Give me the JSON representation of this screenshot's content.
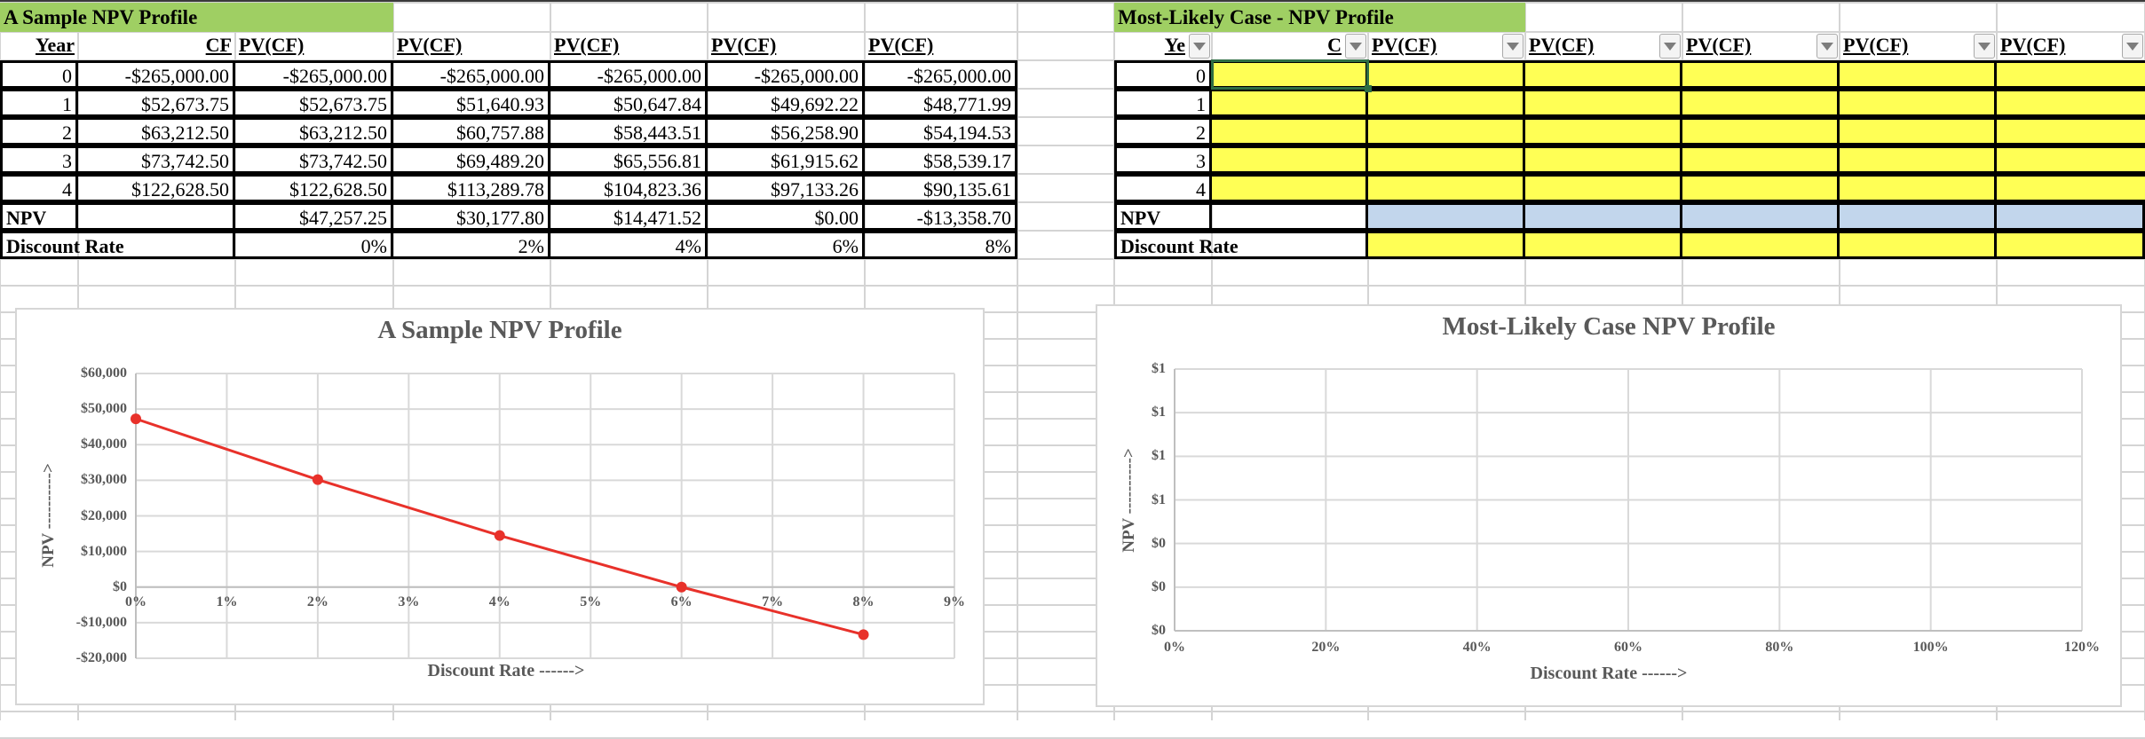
{
  "left_table": {
    "title": "A Sample NPV Profile",
    "headers": [
      "Year",
      "CF",
      "PV(CF)",
      "PV(CF)",
      "PV(CF)",
      "PV(CF)",
      "PV(CF)"
    ],
    "rows": [
      [
        "0",
        "-$265,000.00",
        "-$265,000.00",
        "-$265,000.00",
        "-$265,000.00",
        "-$265,000.00",
        "-$265,000.00"
      ],
      [
        "1",
        "$52,673.75",
        "$52,673.75",
        "$51,640.93",
        "$50,647.84",
        "$49,692.22",
        "$48,771.99"
      ],
      [
        "2",
        "$63,212.50",
        "$63,212.50",
        "$60,757.88",
        "$58,443.51",
        "$56,258.90",
        "$54,194.53"
      ],
      [
        "3",
        "$73,742.50",
        "$73,742.50",
        "$69,489.20",
        "$65,556.81",
        "$61,915.62",
        "$58,539.17"
      ],
      [
        "4",
        "$122,628.50",
        "$122,628.50",
        "$113,289.78",
        "$104,823.36",
        "$97,133.26",
        "$90,135.61"
      ]
    ],
    "npv_label": "NPV",
    "npv_values": [
      "$47,257.25",
      "$30,177.80",
      "$14,471.52",
      "$0.00",
      "-$13,358.70"
    ],
    "rate_label": "Discount Rate",
    "rate_values": [
      "0%",
      "2%",
      "4%",
      "6%",
      "8%"
    ]
  },
  "right_table": {
    "title": "Most-Likely Case - NPV Profile",
    "headers": [
      "Ye",
      "C",
      "PV(CF)",
      "PV(CF)",
      "PV(CF)",
      "PV(CF)",
      "PV(CF)"
    ],
    "years": [
      "0",
      "1",
      "2",
      "3",
      "4"
    ],
    "npv_label": "NPV",
    "rate_label": "Discount Rate",
    "input_color": "#ffff55",
    "npv_color": "#c2d6ec"
  },
  "chart_data": [
    {
      "type": "line",
      "title": "A Sample NPV Profile",
      "xlabel": "Discount Rate ------>",
      "ylabel": "NPV ---------->",
      "x": [
        0,
        2,
        4,
        6,
        8
      ],
      "series": [
        {
          "name": "NPV",
          "color": "#e8312a",
          "values": [
            47257.25,
            30177.8,
            14471.52,
            0.0,
            -13358.7
          ]
        }
      ],
      "xticks": [
        "0%",
        "1%",
        "2%",
        "3%",
        "4%",
        "5%",
        "6%",
        "7%",
        "8%",
        "9%"
      ],
      "yticks": [
        "$60,000",
        "$50,000",
        "$40,000",
        "$30,000",
        "$20,000",
        "$10,000",
        "$0",
        "-$10,000",
        "-$20,000"
      ],
      "xlim": [
        0,
        9
      ],
      "ylim": [
        -20000,
        60000
      ],
      "grid": true,
      "legend": "none"
    },
    {
      "type": "line",
      "title": "Most-Likely Case NPV Profile",
      "xlabel": "Discount Rate ------>",
      "ylabel": "NPV ---------->",
      "x": [],
      "series": [],
      "xticks": [
        "0%",
        "20%",
        "40%",
        "60%",
        "80%",
        "100%",
        "120%"
      ],
      "yticks": [
        "$1",
        "$1",
        "$1",
        "$1",
        "$0",
        "$0",
        "$0"
      ],
      "xlim": [
        0,
        1.2
      ],
      "ylim": [
        0,
        1
      ],
      "grid": true,
      "legend": "none"
    }
  ]
}
